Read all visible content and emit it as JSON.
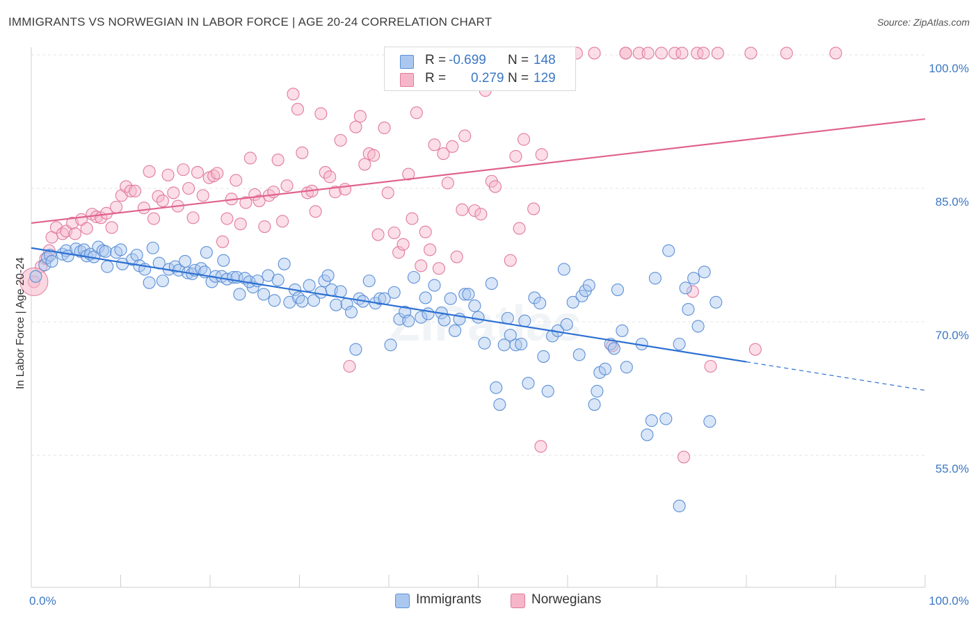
{
  "title": "IMMIGRANTS VS NORWEGIAN IN LABOR FORCE | AGE 20-24 CORRELATION CHART",
  "source": "Source: ZipAtlas.com",
  "watermark": "ZIPatlas",
  "legend": {
    "rows": [
      {
        "r_label": "R =",
        "r_value": "-0.699",
        "n_label": "N =",
        "n_value": "148",
        "color": "#aac8ef",
        "border": "#5b8fd6"
      },
      {
        "r_label": "R =",
        "r_value": "0.279",
        "n_label": "N =",
        "n_value": "129",
        "color": "#f6b6c9",
        "border": "#e07a9c"
      }
    ]
  },
  "bottom_legend": [
    {
      "label": "Immigrants",
      "color": "#aac8ef",
      "border": "#5b8fd6"
    },
    {
      "label": "Norwegians",
      "color": "#f6b6c9",
      "border": "#e07a9c"
    }
  ],
  "chart_data": {
    "type": "scatter",
    "ylabel": "In Labor Force | Age 20-24",
    "xlabel": "",
    "x_tick_labels": [
      "0.0%",
      "100.0%"
    ],
    "y_tick_labels": [
      "100.0%",
      "85.0%",
      "70.0%",
      "55.0%"
    ],
    "y_ticks": [
      100,
      85,
      70,
      55
    ],
    "xlim": [
      0,
      100
    ],
    "ylim": [
      40,
      101
    ],
    "grid": true,
    "colors": {
      "blue_fill": "#aac8ef",
      "blue_stroke": "#5b8fd6",
      "blue_line": "#2b6fd2",
      "pink_fill": "#f6b6c9",
      "pink_stroke": "#e07a9c",
      "pink_line": "#e0628e"
    },
    "series": [
      {
        "name": "Immigrants",
        "trend": {
          "x0": 0,
          "y0": 78.3,
          "x1": 80,
          "y1": 65.5,
          "dash_to_x": 100,
          "dash_to_y": 62.3
        },
        "points": [
          [
            0.5,
            75.1
          ],
          [
            1.5,
            76.4
          ],
          [
            1.8,
            77.2
          ],
          [
            2.1,
            77.5
          ],
          [
            2.3,
            76.8
          ],
          [
            3.5,
            77.6
          ],
          [
            3.9,
            78.0
          ],
          [
            4.1,
            77.4
          ],
          [
            5,
            78.2
          ],
          [
            5.5,
            77.9
          ],
          [
            5.9,
            78.1
          ],
          [
            6.2,
            77.4
          ],
          [
            6.6,
            77.6
          ],
          [
            7.0,
            77.3
          ],
          [
            7.5,
            78.4
          ],
          [
            8.0,
            78.0
          ],
          [
            8.3,
            77.9
          ],
          [
            8.5,
            76.2
          ],
          [
            9.5,
            77.8
          ],
          [
            10.0,
            78.1
          ],
          [
            10.2,
            76.5
          ],
          [
            11.3,
            77.0
          ],
          [
            11.8,
            77.5
          ],
          [
            12.1,
            76.3
          ],
          [
            12.7,
            75.9
          ],
          [
            13.2,
            74.4
          ],
          [
            13.6,
            78.3
          ],
          [
            14.3,
            76.6
          ],
          [
            14.7,
            74.6
          ],
          [
            15.4,
            75.9
          ],
          [
            16.1,
            76.2
          ],
          [
            16.5,
            75.8
          ],
          [
            17.2,
            76.8
          ],
          [
            17.5,
            75.5
          ],
          [
            18.0,
            75.4
          ],
          [
            18.3,
            75.8
          ],
          [
            19.0,
            76.0
          ],
          [
            19.4,
            75.6
          ],
          [
            19.6,
            77.8
          ],
          [
            20.2,
            74.5
          ],
          [
            20.6,
            75.1
          ],
          [
            21.5,
            76.9
          ],
          [
            21.3,
            75.1
          ],
          [
            21.9,
            74.8
          ],
          [
            22.6,
            75.0
          ],
          [
            23.3,
            73.1
          ],
          [
            23.0,
            75.0
          ],
          [
            23.9,
            74.9
          ],
          [
            24.8,
            73.9
          ],
          [
            24.4,
            74.5
          ],
          [
            25.3,
            74.6
          ],
          [
            26.0,
            73.1
          ],
          [
            26.5,
            75.2
          ],
          [
            27.2,
            72.4
          ],
          [
            27.6,
            74.7
          ],
          [
            28.3,
            76.5
          ],
          [
            28.9,
            72.2
          ],
          [
            29.5,
            73.6
          ],
          [
            29.9,
            72.7
          ],
          [
            30.3,
            72.3
          ],
          [
            31.1,
            74.1
          ],
          [
            31.6,
            72.4
          ],
          [
            32.4,
            73.3
          ],
          [
            32.8,
            74.6
          ],
          [
            33.2,
            75.2
          ],
          [
            33.6,
            73.6
          ],
          [
            34.1,
            71.9
          ],
          [
            34.6,
            73.4
          ],
          [
            35.3,
            72.0
          ],
          [
            35.8,
            71.1
          ],
          [
            36.3,
            66.9
          ],
          [
            36.7,
            72.6
          ],
          [
            37.1,
            72.3
          ],
          [
            37.8,
            74.6
          ],
          [
            38.5,
            72.1
          ],
          [
            39.0,
            72.6
          ],
          [
            39.5,
            72.6
          ],
          [
            40.2,
            67.4
          ],
          [
            40.6,
            73.3
          ],
          [
            41.2,
            70.3
          ],
          [
            41.8,
            71.1
          ],
          [
            42.2,
            70.1
          ],
          [
            42.8,
            75.0
          ],
          [
            43.6,
            70.5
          ],
          [
            44.1,
            72.7
          ],
          [
            44.4,
            70.9
          ],
          [
            45.1,
            74.1
          ],
          [
            45.9,
            71.0
          ],
          [
            46.2,
            70.2
          ],
          [
            46.9,
            72.6
          ],
          [
            47.4,
            69.0
          ],
          [
            47.9,
            70.3
          ],
          [
            48.5,
            73.1
          ],
          [
            48.9,
            73.1
          ],
          [
            49.6,
            71.8
          ],
          [
            50.0,
            70.5
          ],
          [
            50.7,
            67.6
          ],
          [
            51.5,
            74.3
          ],
          [
            52.0,
            62.6
          ],
          [
            52.4,
            60.7
          ],
          [
            52.9,
            67.4
          ],
          [
            53.3,
            70.4
          ],
          [
            53.6,
            68.5
          ],
          [
            54.2,
            67.4
          ],
          [
            54.8,
            67.5
          ],
          [
            55.2,
            70.1
          ],
          [
            55.6,
            63.1
          ],
          [
            56.3,
            72.7
          ],
          [
            56.9,
            72.1
          ],
          [
            57.3,
            66.1
          ],
          [
            57.8,
            62.2
          ],
          [
            58.3,
            68.4
          ],
          [
            58.9,
            69.0
          ],
          [
            59.6,
            75.9
          ],
          [
            59.9,
            69.7
          ],
          [
            60.6,
            72.2
          ],
          [
            61.3,
            66.3
          ],
          [
            61.6,
            72.9
          ],
          [
            62.0,
            73.5
          ],
          [
            62.4,
            74.1
          ],
          [
            63.0,
            60.7
          ],
          [
            63.3,
            62.2
          ],
          [
            63.6,
            64.3
          ],
          [
            64.2,
            64.7
          ],
          [
            64.8,
            67.5
          ],
          [
            65.2,
            67.0
          ],
          [
            65.6,
            73.6
          ],
          [
            66.1,
            69.0
          ],
          [
            66.6,
            64.9
          ],
          [
            68.3,
            67.5
          ],
          [
            68.9,
            57.3
          ],
          [
            69.4,
            58.9
          ],
          [
            69.8,
            74.9
          ],
          [
            71.0,
            59.1
          ],
          [
            71.3,
            78.0
          ],
          [
            72.5,
            67.5
          ],
          [
            73.2,
            73.8
          ],
          [
            73.5,
            71.4
          ],
          [
            74.1,
            74.9
          ],
          [
            74.6,
            69.5
          ],
          [
            75.3,
            75.6
          ],
          [
            75.9,
            58.8
          ],
          [
            76.6,
            72.2
          ],
          [
            72.5,
            49.3
          ]
        ]
      },
      {
        "name": "Norwegians",
        "trend": {
          "x0": 0,
          "y0": 81.1,
          "x1": 100,
          "y1": 92.8
        },
        "points": [
          [
            0.3,
            74.5
          ],
          [
            1.1,
            76.2
          ],
          [
            1.6,
            77.1
          ],
          [
            2.0,
            78.0
          ],
          [
            2.3,
            79.5
          ],
          [
            2.8,
            80.6
          ],
          [
            3.5,
            79.9
          ],
          [
            3.9,
            80.2
          ],
          [
            4.6,
            81.1
          ],
          [
            4.9,
            79.9
          ],
          [
            5.6,
            81.5
          ],
          [
            6.2,
            80.5
          ],
          [
            6.8,
            82.1
          ],
          [
            7.3,
            81.8
          ],
          [
            7.8,
            81.7
          ],
          [
            8.4,
            82.2
          ],
          [
            9.0,
            80.6
          ],
          [
            9.5,
            82.9
          ],
          [
            10.1,
            84.2
          ],
          [
            10.6,
            85.2
          ],
          [
            11.1,
            84.7
          ],
          [
            11.6,
            84.7
          ],
          [
            12.6,
            82.8
          ],
          [
            13.2,
            86.9
          ],
          [
            13.7,
            81.6
          ],
          [
            14.2,
            84.1
          ],
          [
            14.7,
            83.6
          ],
          [
            15.3,
            86.5
          ],
          [
            15.9,
            84.5
          ],
          [
            16.4,
            83.0
          ],
          [
            17.0,
            87.1
          ],
          [
            17.6,
            85.0
          ],
          [
            18.1,
            81.7
          ],
          [
            18.6,
            86.8
          ],
          [
            19.2,
            84.2
          ],
          [
            19.9,
            86.2
          ],
          [
            20.4,
            86.4
          ],
          [
            20.8,
            86.7
          ],
          [
            21.4,
            79.0
          ],
          [
            21.9,
            81.6
          ],
          [
            22.4,
            83.8
          ],
          [
            22.9,
            85.9
          ],
          [
            23.4,
            81.0
          ],
          [
            24.0,
            83.4
          ],
          [
            24.5,
            88.4
          ],
          [
            25.0,
            84.3
          ],
          [
            25.5,
            83.6
          ],
          [
            26.1,
            80.7
          ],
          [
            26.6,
            84.2
          ],
          [
            27.1,
            84.6
          ],
          [
            27.6,
            88.2
          ],
          [
            28.1,
            81.3
          ],
          [
            28.6,
            85.3
          ],
          [
            29.3,
            95.6
          ],
          [
            29.8,
            93.9
          ],
          [
            30.3,
            89.0
          ],
          [
            30.9,
            84.5
          ],
          [
            31.4,
            84.7
          ],
          [
            31.8,
            82.4
          ],
          [
            32.4,
            93.4
          ],
          [
            32.9,
            86.8
          ],
          [
            33.4,
            86.3
          ],
          [
            34.0,
            84.6
          ],
          [
            34.6,
            90.4
          ],
          [
            35.1,
            84.9
          ],
          [
            35.6,
            65.0
          ],
          [
            36.3,
            91.9
          ],
          [
            36.8,
            93.1
          ],
          [
            37.3,
            87.7
          ],
          [
            37.8,
            88.9
          ],
          [
            38.3,
            88.7
          ],
          [
            38.8,
            79.8
          ],
          [
            39.5,
            91.8
          ],
          [
            39.9,
            84.5
          ],
          [
            40.6,
            80.0
          ],
          [
            41.1,
            77.8
          ],
          [
            41.6,
            78.7
          ],
          [
            42.2,
            86.6
          ],
          [
            42.6,
            81.6
          ],
          [
            43.1,
            93.5
          ],
          [
            43.6,
            76.3
          ],
          [
            44.1,
            80.1
          ],
          [
            44.6,
            78.1
          ],
          [
            45.1,
            89.9
          ],
          [
            45.6,
            76.0
          ],
          [
            46.1,
            88.9
          ],
          [
            46.6,
            85.6
          ],
          [
            47.1,
            89.7
          ],
          [
            47.6,
            77.3
          ],
          [
            48.2,
            82.6
          ],
          [
            48.5,
            90.9
          ],
          [
            49.0,
            100.2
          ],
          [
            49.6,
            82.5
          ],
          [
            50.3,
            82.1
          ],
          [
            50.8,
            96.0
          ],
          [
            51.5,
            85.8
          ],
          [
            51.9,
            85.2
          ],
          [
            52.5,
            100.2
          ],
          [
            53.6,
            76.9
          ],
          [
            54.2,
            88.6
          ],
          [
            54.6,
            80.5
          ],
          [
            55.1,
            90.5
          ],
          [
            56.0,
            100.2
          ],
          [
            56.2,
            82.7
          ],
          [
            57.1,
            88.8
          ],
          [
            57.5,
            100.2
          ],
          [
            58.0,
            100.2
          ],
          [
            59.5,
            100.2
          ],
          [
            61.0,
            100.2
          ],
          [
            63.0,
            100.2
          ],
          [
            65.0,
            67.3
          ],
          [
            66.5,
            100.2
          ],
          [
            68.0,
            100.2
          ],
          [
            69.0,
            100.2
          ],
          [
            70.5,
            100.2
          ],
          [
            72.0,
            100.2
          ],
          [
            73.0,
            54.8
          ],
          [
            74.0,
            73.4
          ],
          [
            74.5,
            100.2
          ],
          [
            76.0,
            65.0
          ],
          [
            76.8,
            100.2
          ],
          [
            80.5,
            100.2
          ],
          [
            81.0,
            66.9
          ],
          [
            84.5,
            100.2
          ],
          [
            90.0,
            100.2
          ],
          [
            57.0,
            56.0
          ],
          [
            66.5,
            100.2
          ],
          [
            72.8,
            100.2
          ],
          [
            75.2,
            100.2
          ]
        ]
      }
    ]
  }
}
